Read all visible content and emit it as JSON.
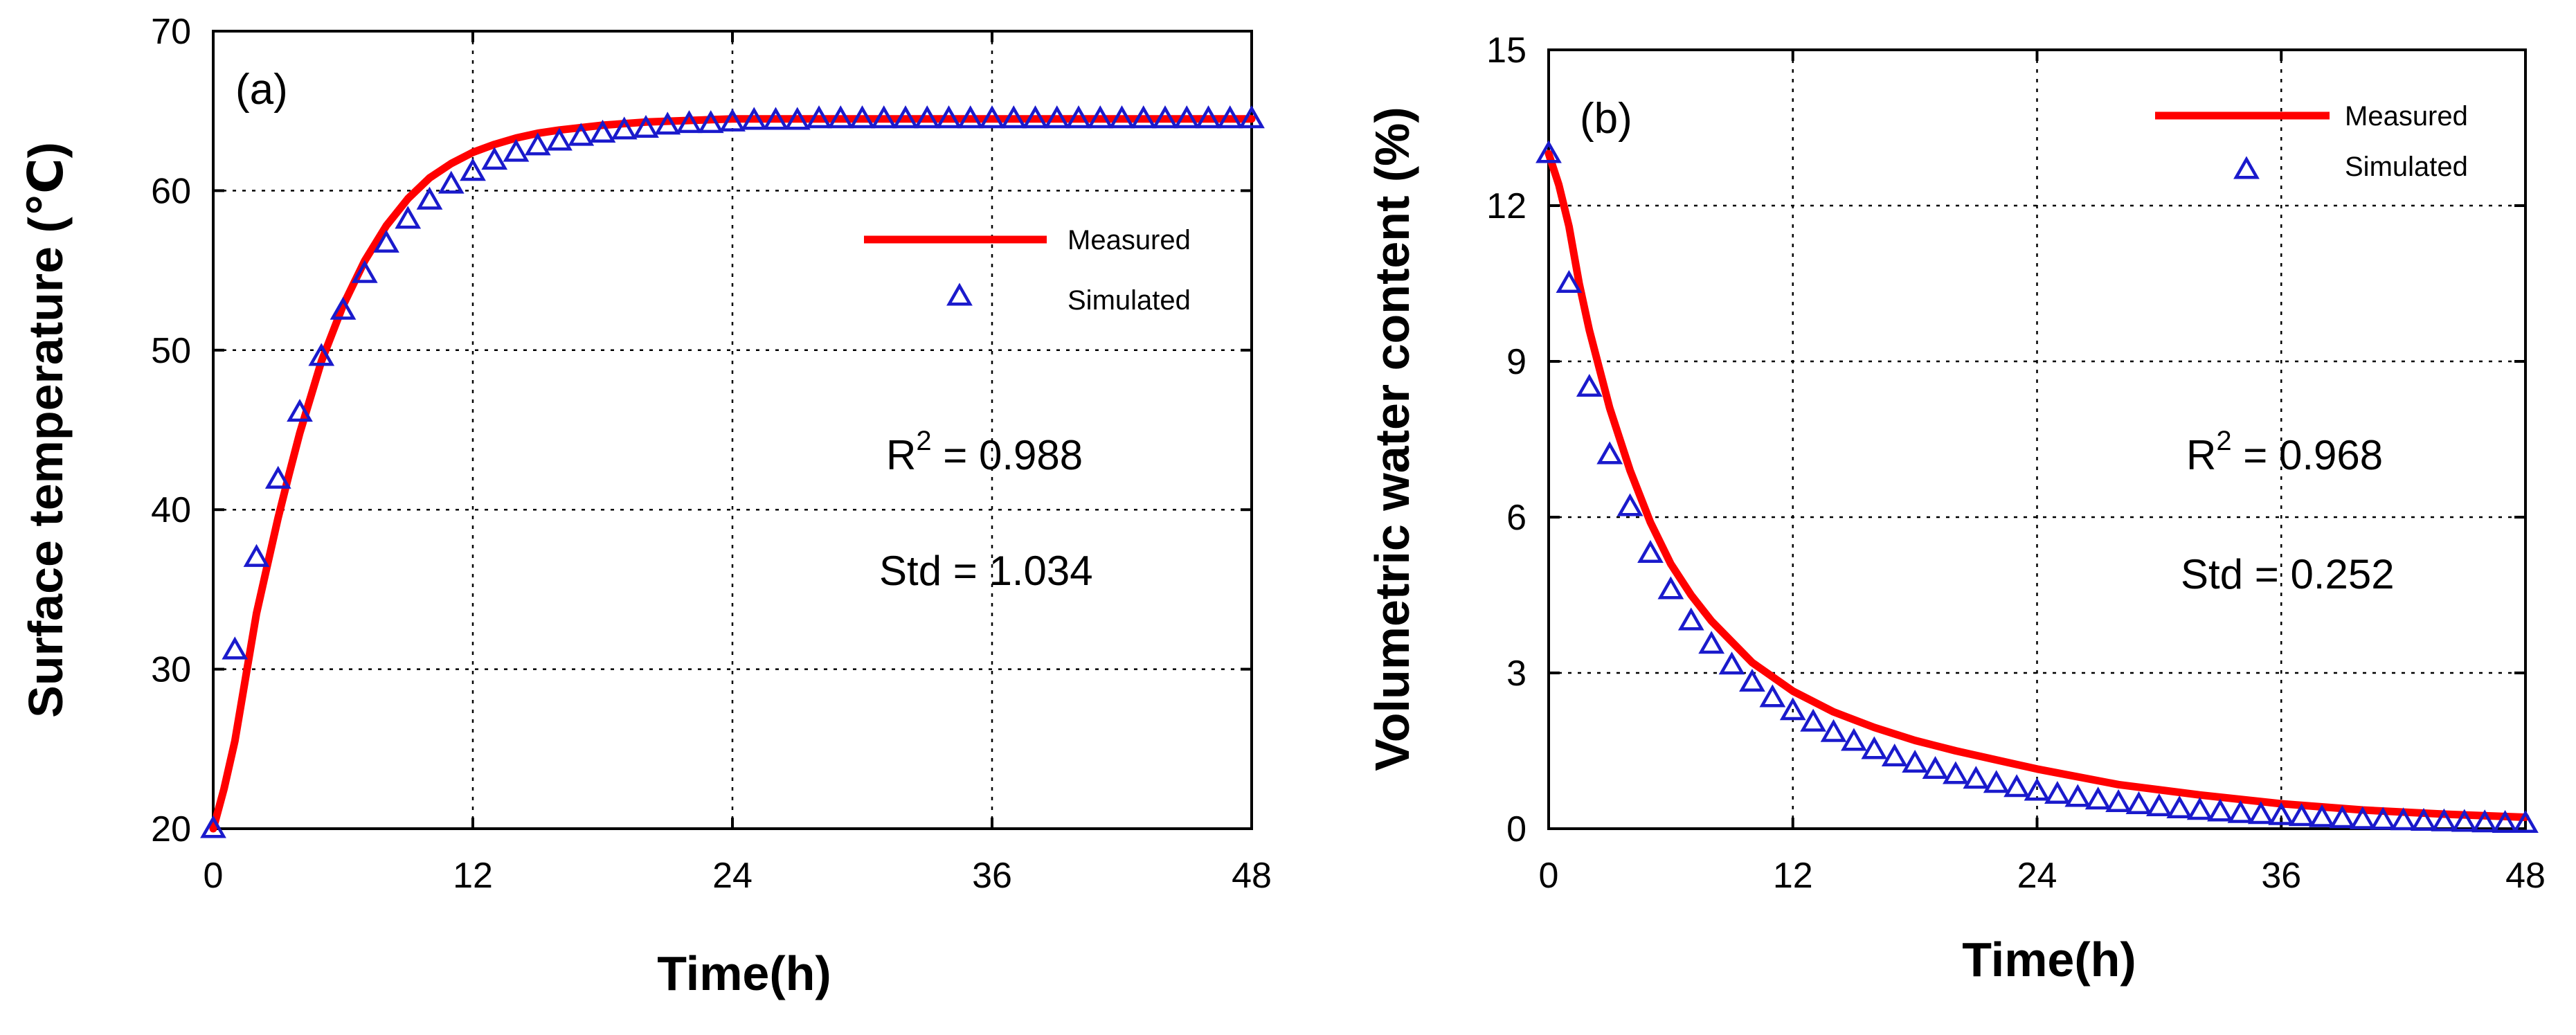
{
  "figure": {
    "colors": {
      "measured": "#ff0000",
      "simulated": "#1a1acc",
      "axis": "#000000"
    },
    "chart_data": [
      {
        "type": "line",
        "panel_label": "(a)",
        "xlabel": "Time(h)",
        "ylabel": "Surface temperature (℃)",
        "xlim": [
          0,
          48
        ],
        "ylim": [
          20,
          70
        ],
        "xticks": [
          0,
          12,
          24,
          36,
          48
        ],
        "yticks": [
          20,
          30,
          40,
          50,
          60,
          70
        ],
        "grid": true,
        "legend": {
          "position": "right-middle",
          "measured": "Measured",
          "simulated": "Simulated"
        },
        "stats": {
          "r2_prefix": "R",
          "r2_sup": "2",
          "r2_value": " = 0.988",
          "std": "Std = 1.034"
        },
        "series": [
          {
            "name": "Measured",
            "style": "line",
            "x": [
              0,
              0.5,
              1,
              1.5,
              2,
              2.5,
              3,
              3.5,
              4,
              5,
              6,
              7,
              8,
              9,
              10,
              11,
              12,
              13,
              14,
              15,
              16,
              18,
              20,
              22,
              24,
              28,
              32,
              36,
              40,
              44,
              48
            ],
            "y": [
              20,
              22.5,
              25.5,
              29.5,
              33.5,
              36.5,
              39.5,
              42.2,
              44.8,
              49.3,
              52.8,
              55.6,
              57.8,
              59.5,
              60.8,
              61.7,
              62.4,
              62.9,
              63.3,
              63.6,
              63.8,
              64.1,
              64.3,
              64.4,
              64.5,
              64.5,
              64.5,
              64.5,
              64.5,
              64.5,
              64.5
            ]
          },
          {
            "name": "Simulated",
            "style": "triangle",
            "x": [
              0,
              1,
              2,
              3,
              4,
              5,
              6,
              7,
              8,
              9,
              10,
              11,
              12,
              13,
              14,
              15,
              16,
              17,
              18,
              19,
              20,
              21,
              22,
              23,
              24,
              25,
              26,
              27,
              28,
              29,
              30,
              31,
              32,
              33,
              34,
              35,
              36,
              37,
              38,
              39,
              40,
              41,
              42,
              43,
              44,
              45,
              46,
              47,
              48
            ],
            "y": [
              20,
              31.2,
              37,
              41.9,
              46.1,
              49.6,
              52.5,
              54.8,
              56.7,
              58.2,
              59.4,
              60.4,
              61.2,
              61.9,
              62.4,
              62.8,
              63.1,
              63.4,
              63.6,
              63.8,
              63.9,
              64.1,
              64.2,
              64.2,
              64.3,
              64.4,
              64.4,
              64.4,
              64.5,
              64.5,
              64.5,
              64.5,
              64.5,
              64.5,
              64.5,
              64.5,
              64.5,
              64.5,
              64.5,
              64.5,
              64.5,
              64.5,
              64.5,
              64.5,
              64.5,
              64.5,
              64.5,
              64.5,
              64.5
            ]
          }
        ]
      },
      {
        "type": "line",
        "panel_label": "(b)",
        "xlabel": "Time(h)",
        "ylabel": "Volumetric water content (%)",
        "xlim": [
          0,
          48
        ],
        "ylim": [
          0,
          15
        ],
        "xticks": [
          0,
          12,
          24,
          36,
          48
        ],
        "yticks": [
          0,
          3,
          6,
          9,
          12,
          15
        ],
        "grid": true,
        "legend": {
          "position": "top-right",
          "measured": "Measured",
          "simulated": "Simulated"
        },
        "stats": {
          "r2_prefix": "R",
          "r2_sup": "2",
          "r2_value": " = 0.968",
          "std": "Std = 0.252"
        },
        "series": [
          {
            "name": "Measured",
            "style": "line",
            "x": [
              0,
              0.5,
              1,
              1.5,
              2,
              3,
              4,
              5,
              6,
              7,
              8,
              9,
              10,
              12,
              14,
              16,
              18,
              20,
              24,
              28,
              32,
              36,
              40,
              44,
              48
            ],
            "y": [
              13,
              12.4,
              11.6,
              10.5,
              9.6,
              8.1,
              6.9,
              5.9,
              5.1,
              4.5,
              4,
              3.6,
              3.2,
              2.65,
              2.25,
              1.95,
              1.7,
              1.5,
              1.15,
              0.85,
              0.65,
              0.48,
              0.36,
              0.28,
              0.22
            ]
          },
          {
            "name": "Simulated",
            "style": "triangle",
            "x": [
              0,
              1,
              2,
              3,
              4,
              5,
              6,
              7,
              8,
              9,
              10,
              11,
              12,
              13,
              14,
              15,
              16,
              17,
              18,
              19,
              20,
              21,
              22,
              23,
              24,
              25,
              26,
              27,
              28,
              29,
              30,
              31,
              32,
              33,
              34,
              35,
              36,
              37,
              38,
              39,
              40,
              41,
              42,
              43,
              44,
              45,
              46,
              47,
              48
            ],
            "y": [
              13,
              10.5,
              8.5,
              7.2,
              6.2,
              5.3,
              4.6,
              4,
              3.55,
              3.15,
              2.82,
              2.52,
              2.27,
              2.05,
              1.85,
              1.68,
              1.52,
              1.38,
              1.26,
              1.14,
              1.04,
              0.95,
              0.87,
              0.79,
              0.72,
              0.66,
              0.6,
              0.55,
              0.5,
              0.46,
              0.42,
              0.38,
              0.35,
              0.32,
              0.29,
              0.27,
              0.25,
              0.23,
              0.21,
              0.19,
              0.17,
              0.16,
              0.15,
              0.14,
              0.13,
              0.12,
              0.11,
              0.1,
              0.1
            ]
          }
        ]
      }
    ]
  }
}
